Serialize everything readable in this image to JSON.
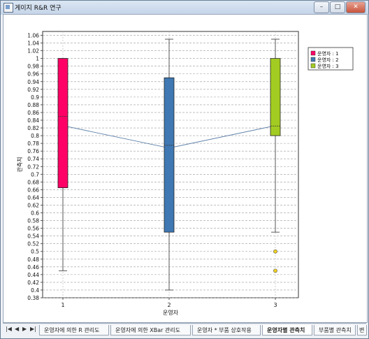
{
  "window": {
    "title": "게이지 R&R 연구",
    "buttons": {
      "minimize": "–",
      "maximize": "□",
      "close": "✕"
    }
  },
  "colors": {
    "operator1": "#ff0066",
    "operator2": "#3f78b3",
    "operator3": "#a3cc22",
    "mean_line": "#5d7fa8",
    "outlier": "#f0d020"
  },
  "chart_data": {
    "type": "box",
    "xlabel": "운영자",
    "ylabel": "관측치",
    "categories": [
      "1",
      "2",
      "3"
    ],
    "ylim": [
      0.38,
      1.07
    ],
    "y_ticks": [
      "0.38",
      "0.4",
      "0.42",
      "0.44",
      "0.46",
      "0.48",
      "0.5",
      "0.52",
      "0.54",
      "0.56",
      "0.58",
      "0.6",
      "0.62",
      "0.64",
      "0.66",
      "0.68",
      "0.7",
      "0.72",
      "0.74",
      "0.76",
      "0.78",
      "0.8",
      "0.82",
      "0.84",
      "0.86",
      "0.88",
      "0.9",
      "0.92",
      "0.94",
      "0.96",
      "0.98",
      "1",
      "1.02",
      "1.04",
      "1.06"
    ],
    "grid": true,
    "legend_position": "top-right",
    "series": [
      {
        "name": "운영자 : 1",
        "whisker_low": 0.45,
        "q1": 0.665,
        "median": 0.85,
        "q3": 1.0,
        "whisker_high": 1.0,
        "mean": 0.826,
        "outliers": []
      },
      {
        "name": "운영자 : 2",
        "whisker_low": 0.4,
        "q1": 0.55,
        "median": 0.775,
        "q3": 0.95,
        "whisker_high": 1.05,
        "mean": 0.768,
        "outliers": []
      },
      {
        "name": "운영자 : 3",
        "whisker_low": 0.55,
        "q1": 0.8,
        "median": 0.825,
        "q3": 1.0,
        "whisker_high": 1.05,
        "mean": 0.826,
        "outliers": [
          0.5,
          0.45
        ]
      }
    ]
  },
  "tabs": {
    "items": [
      {
        "label": "운영자에 의한 R 관리도"
      },
      {
        "label": "운영자에 의한 XBar 관리도"
      },
      {
        "label": "운영자 * 부품 상호작용"
      },
      {
        "label": "운영자별 관측치"
      },
      {
        "label": "부품별 관측치"
      },
      {
        "label": "변"
      }
    ],
    "active_index": 3
  }
}
